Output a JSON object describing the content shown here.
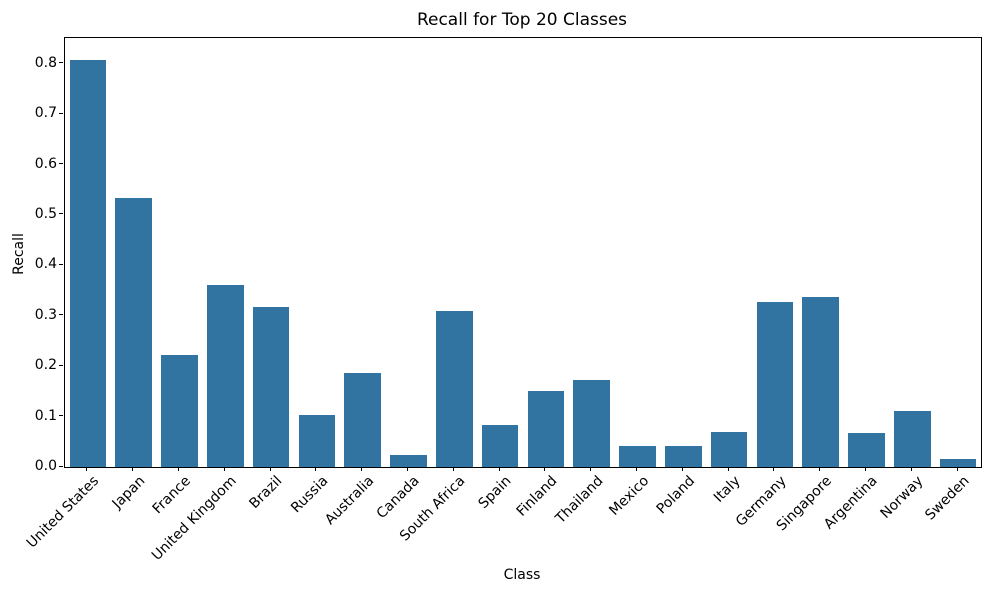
{
  "chart_data": {
    "type": "bar",
    "title": "Recall for Top 20 Classes",
    "xlabel": "Class",
    "ylabel": "Recall",
    "categories": [
      "United States",
      "Japan",
      "France",
      "United Kingdom",
      "Brazil",
      "Russia",
      "Australia",
      "Canada",
      "South Africa",
      "Spain",
      "Finland",
      "Thailand",
      "Mexico",
      "Poland",
      "Italy",
      "Germany",
      "Singapore",
      "Argentina",
      "Norway",
      "Sweden"
    ],
    "values": [
      0.808,
      0.534,
      0.222,
      0.361,
      0.317,
      0.103,
      0.186,
      0.023,
      0.31,
      0.084,
      0.151,
      0.173,
      0.041,
      0.042,
      0.069,
      0.327,
      0.337,
      0.068,
      0.112,
      0.016
    ],
    "yticks": [
      0.0,
      0.1,
      0.2,
      0.3,
      0.4,
      0.5,
      0.6,
      0.7,
      0.8
    ],
    "ytick_labels": [
      "0.0",
      "0.1",
      "0.2",
      "0.3",
      "0.4",
      "0.5",
      "0.6",
      "0.7",
      "0.8"
    ],
    "ylim": [
      0,
      0.851
    ],
    "bar_color": "#3274a1",
    "grid": false,
    "legend_position": "none",
    "xtick_rotation_deg": 45
  }
}
